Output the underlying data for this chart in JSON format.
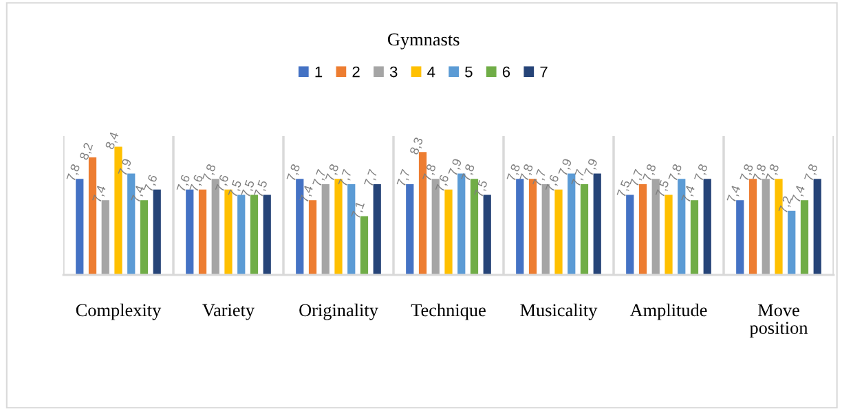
{
  "chart_data": {
    "type": "bar",
    "title": "Gymnasts",
    "categories": [
      "Complexity",
      "Variety",
      "Originality",
      "Technique",
      "Musicality",
      "Amplitude",
      "Move\nposition"
    ],
    "ylim": [
      6,
      8.6
    ],
    "tick_labels": "x",
    "grid": "x",
    "legend": "top",
    "series": [
      {
        "name": "1",
        "color": "#4472c4",
        "values": [
          7.8,
          7.6,
          7.8,
          7.7,
          7.8,
          7.5,
          7.4
        ],
        "value_labels": [
          "7,8",
          "7,6",
          "7,8",
          "7,7",
          "7,8",
          "7,5",
          "7,4"
        ]
      },
      {
        "name": "2",
        "color": "#ed7d31",
        "values": [
          8.2,
          7.6,
          7.4,
          8.3,
          7.8,
          7.7,
          7.8
        ],
        "value_labels": [
          "8,2",
          "7,6",
          "7,4",
          "8,3",
          "7,8",
          "7,7",
          "7,8"
        ]
      },
      {
        "name": "3",
        "color": "#a5a5a5",
        "values": [
          7.4,
          7.8,
          7.7,
          7.8,
          7.7,
          7.8,
          7.8
        ],
        "value_labels": [
          "7,4",
          "7,8",
          "7,7",
          "7,8",
          "7,7",
          "7,8",
          "7,8"
        ]
      },
      {
        "name": "4",
        "color": "#ffc000",
        "values": [
          8.4,
          7.6,
          7.8,
          7.6,
          7.6,
          7.5,
          7.8
        ],
        "value_labels": [
          "8,4",
          "7,6",
          "7,8",
          "7,6",
          "7,6",
          "7,5",
          "7,8"
        ]
      },
      {
        "name": "5",
        "color": "#5b9bd5",
        "values": [
          7.9,
          7.5,
          7.7,
          7.9,
          7.9,
          7.8,
          7.2
        ],
        "value_labels": [
          "7,9",
          "7,5",
          "7,7",
          "7,9",
          "7,9",
          "7,8",
          "7,2"
        ]
      },
      {
        "name": "6",
        "color": "#70ad47",
        "values": [
          7.4,
          7.5,
          7.1,
          7.8,
          7.7,
          7.4,
          7.4
        ],
        "value_labels": [
          "7,4",
          "7,5",
          "7,1",
          "7,8",
          "7,7",
          "7,4",
          "7,4"
        ]
      },
      {
        "name": "7",
        "color": "#264478",
        "values": [
          7.6,
          7.5,
          7.7,
          7.5,
          7.9,
          7.8,
          7.8
        ],
        "value_labels": [
          "7,6",
          "7,5",
          "7,7",
          "7,5",
          "7,9",
          "7,8",
          "7,8"
        ]
      }
    ]
  }
}
